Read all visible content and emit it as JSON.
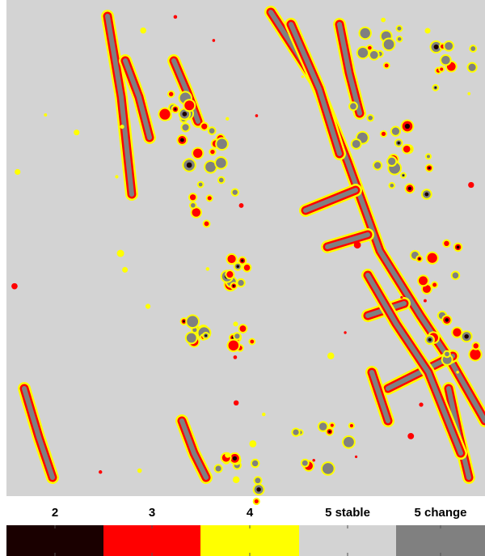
{
  "legend": {
    "items": [
      {
        "label": "2",
        "color": "#1a0000"
      },
      {
        "label": "3",
        "color": "#ff0000"
      },
      {
        "label": "4",
        "color": "#ffff00"
      },
      {
        "label": "5 stable",
        "color": "#d3d3d3"
      },
      {
        "label": "5 change",
        "color": "#808080"
      }
    ]
  }
}
